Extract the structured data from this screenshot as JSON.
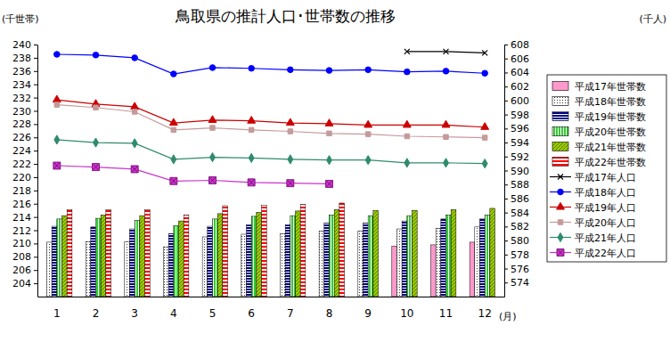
{
  "chart_data": {
    "type": "bar",
    "title": "鳥取県の推計人口･世帯数の推移",
    "y_label": "(千世帯)",
    "y2_label": "(千人)",
    "x_label": "(月)",
    "categories": [
      "1",
      "2",
      "3",
      "4",
      "5",
      "6",
      "7",
      "8",
      "9",
      "10",
      "11",
      "12"
    ],
    "ylim": [
      202,
      240
    ],
    "yticks": [
      204,
      206,
      208,
      210,
      212,
      214,
      216,
      218,
      220,
      222,
      224,
      226,
      228,
      230,
      232,
      234,
      236,
      238,
      240
    ],
    "y2lim": [
      572,
      608
    ],
    "y2ticks": [
      574,
      576,
      578,
      580,
      582,
      584,
      586,
      588,
      590,
      592,
      594,
      596,
      598,
      600,
      602,
      604,
      606,
      608
    ],
    "legend": "right",
    "series": [
      {
        "name": "平成17年世帯数",
        "type": "bar",
        "color": "#ff99cc",
        "values": [
          null,
          null,
          null,
          null,
          null,
          null,
          null,
          null,
          null,
          209.6,
          209.8,
          210.2
        ]
      },
      {
        "name": "平成18年世帯数",
        "type": "bar",
        "color": "#333333",
        "values": [
          210.2,
          210.3,
          210.3,
          209.5,
          211.0,
          211.4,
          211.5,
          211.9,
          211.9,
          212.2,
          212.3,
          212.5
        ]
      },
      {
        "name": "平成19年世帯数",
        "type": "bar",
        "color": "#000080",
        "values": [
          212.6,
          212.5,
          212.2,
          211.5,
          212.6,
          212.8,
          212.8,
          213.1,
          213.1,
          213.4,
          213.7,
          213.7
        ]
      },
      {
        "name": "平成20年世帯数",
        "type": "bar",
        "color": "#33cc33",
        "values": [
          213.7,
          213.8,
          213.5,
          212.7,
          213.7,
          214.1,
          214.2,
          214.3,
          214.2,
          214.2,
          214.3,
          214.3
        ]
      },
      {
        "name": "平成21年世帯数",
        "type": "bar",
        "color": "#99cc00",
        "values": [
          214.2,
          214.3,
          214.2,
          213.4,
          214.5,
          214.7,
          214.9,
          215.1,
          215.0,
          215.0,
          215.1,
          215.3
        ]
      },
      {
        "name": "平成22年世帯数",
        "type": "bar",
        "color": "#ff0000",
        "values": [
          215.1,
          215.1,
          215.1,
          214.3,
          215.7,
          215.8,
          215.9,
          216.1,
          null,
          null,
          null,
          null
        ]
      },
      {
        "name": "平成17年人口",
        "type": "line",
        "axis": "y2",
        "color": "#000000",
        "marker": "x",
        "values": [
          null,
          null,
          null,
          null,
          null,
          null,
          null,
          null,
          null,
          607.0,
          607.0,
          606.8
        ]
      },
      {
        "name": "平成18年人口",
        "type": "line",
        "axis": "y2",
        "color": "#0000ff",
        "marker": "circle",
        "values": [
          606.6,
          606.5,
          606.1,
          603.8,
          604.7,
          604.6,
          604.4,
          604.3,
          604.4,
          604.1,
          604.2,
          603.9
        ]
      },
      {
        "name": "平成19年人口",
        "type": "line",
        "axis": "y2",
        "color": "#cc0000",
        "marker": "triangle",
        "values": [
          600.1,
          599.5,
          599.1,
          596.8,
          597.2,
          597.1,
          596.8,
          596.7,
          596.5,
          596.5,
          596.5,
          596.2
        ]
      },
      {
        "name": "平成20年人口",
        "type": "line",
        "axis": "y2",
        "color": "#c49a9a",
        "marker": "square",
        "values": [
          599.4,
          599.0,
          598.4,
          595.8,
          596.1,
          595.8,
          595.6,
          595.3,
          595.2,
          594.9,
          594.8,
          594.7
        ]
      },
      {
        "name": "平成21年人口",
        "type": "line",
        "axis": "y2",
        "color": "#2e8b6e",
        "marker": "diamond",
        "values": [
          594.4,
          594.0,
          593.9,
          591.6,
          591.9,
          591.8,
          591.6,
          591.5,
          591.5,
          591.1,
          591.1,
          591.0
        ]
      },
      {
        "name": "平成22年人口",
        "type": "line",
        "axis": "y2",
        "color": "#cc33cc",
        "marker": "square-x",
        "values": [
          590.7,
          590.5,
          590.2,
          588.5,
          588.6,
          588.3,
          588.2,
          588.1,
          null,
          null,
          null,
          null
        ]
      }
    ]
  }
}
